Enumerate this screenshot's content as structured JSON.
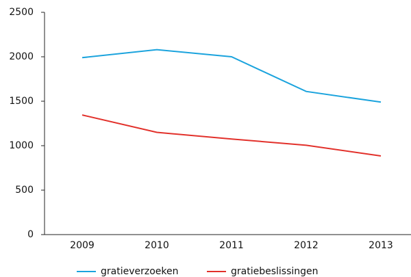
{
  "chart_data": {
    "type": "line",
    "categories": [
      "2009",
      "2010",
      "2011",
      "2012",
      "2013"
    ],
    "series": [
      {
        "name": "gratieverzoeken",
        "color": "#1aa3dd",
        "values": [
          1990,
          2080,
          2000,
          1610,
          1490
        ]
      },
      {
        "name": "gratiebeslissingen",
        "color": "#e2302a",
        "values": [
          1345,
          1150,
          1075,
          1005,
          885
        ]
      }
    ],
    "ylim": [
      0,
      2500
    ],
    "yticks": [
      0,
      500,
      1000,
      1500,
      2000,
      2500
    ],
    "legend": "bottom"
  }
}
